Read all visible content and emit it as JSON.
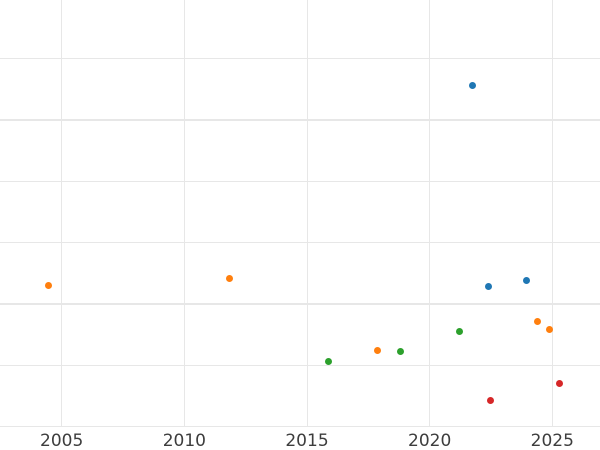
{
  "chart_data": {
    "type": "scatter",
    "title": "",
    "xlabel": "",
    "ylabel": "",
    "grid": true,
    "legend_position": "none",
    "background_color": "#ffffff",
    "gridline_color": "#e7e7e7",
    "tick_label_color": "#3d3d3d",
    "x_tick_labels": [
      "2005",
      "2010",
      "2015",
      "2020",
      "2025"
    ],
    "x_tick_values": [
      2005,
      2010,
      2015,
      2020,
      2025
    ],
    "x_range_visible": [
      2002.5,
      2026.9
    ],
    "y_tick_labels_visible": false,
    "y_gridline_units": [
      0,
      1,
      2,
      3,
      4,
      5,
      6
    ],
    "y_range_visible": [
      -0.38,
      6.96
    ],
    "series": [
      {
        "name": "blue-series",
        "color": "#1f77b4",
        "points": [
          {
            "x": 2021.74,
            "y": 5.56
          },
          {
            "x": 2022.38,
            "y": 2.29
          },
          {
            "x": 2023.94,
            "y": 2.38
          }
        ]
      },
      {
        "name": "orange-series",
        "color": "#ff7f0e",
        "points": [
          {
            "x": 2004.45,
            "y": 2.3
          },
          {
            "x": 2011.85,
            "y": 2.41
          },
          {
            "x": 2017.88,
            "y": 1.24
          },
          {
            "x": 2024.38,
            "y": 1.71
          },
          {
            "x": 2024.88,
            "y": 1.59
          }
        ]
      },
      {
        "name": "green-series",
        "color": "#2ca02c",
        "points": [
          {
            "x": 2015.87,
            "y": 1.07
          },
          {
            "x": 2018.82,
            "y": 1.22
          },
          {
            "x": 2021.2,
            "y": 1.55
          }
        ]
      },
      {
        "name": "red-series",
        "color": "#d62728",
        "points": [
          {
            "x": 2022.49,
            "y": 0.42
          },
          {
            "x": 2025.3,
            "y": 0.71
          }
        ]
      }
    ]
  }
}
